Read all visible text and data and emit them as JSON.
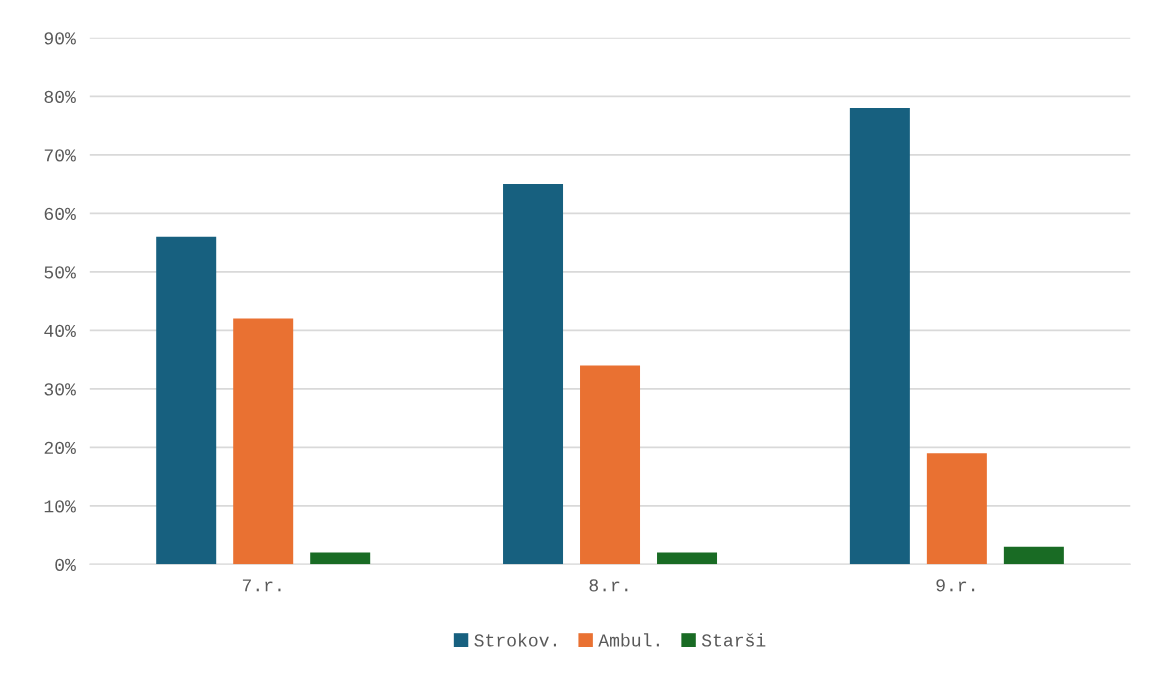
{
  "chart_data": {
    "type": "bar",
    "categories": [
      "7.r.",
      "8.r.",
      "9.r."
    ],
    "series": [
      {
        "name": "Strokov.",
        "color": "#17607f",
        "values": [
          56,
          65,
          78
        ]
      },
      {
        "name": "Ambul.",
        "color": "#e97132",
        "values": [
          42,
          34,
          19
        ]
      },
      {
        "name": "Starši",
        "color": "#196b24",
        "values": [
          2,
          2,
          3
        ]
      }
    ],
    "ylim": [
      0,
      90
    ],
    "yticks": [
      {
        "value": 0,
        "label": "0%"
      },
      {
        "value": 10,
        "label": "10%"
      },
      {
        "value": 20,
        "label": "20%"
      },
      {
        "value": 30,
        "label": "30%"
      },
      {
        "value": 40,
        "label": "40%"
      },
      {
        "value": 50,
        "label": "50%"
      },
      {
        "value": 60,
        "label": "60%"
      },
      {
        "value": 70,
        "label": "70%"
      },
      {
        "value": 80,
        "label": "80%"
      },
      {
        "value": 90,
        "label": "90%"
      }
    ],
    "grid": "y",
    "legend": "bottom"
  }
}
